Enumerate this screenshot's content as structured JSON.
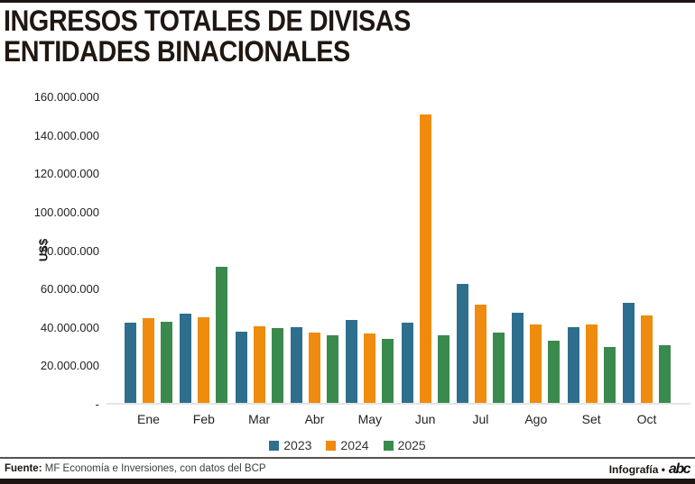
{
  "header": {
    "title_line1": "INGRESOS TOTALES DE DIVISAS",
    "title_line2": "ENTIDADES BINACIONALES"
  },
  "chart_data": {
    "type": "bar",
    "title": "INGRESOS TOTALES DE DIVISAS ENTIDADES BINACIONALES",
    "xlabel": "",
    "ylabel": "US$",
    "categories": [
      "Ene",
      "Feb",
      "Mar",
      "Abr",
      "May",
      "Jun",
      "Jul",
      "Ago",
      "Set",
      "Oct"
    ],
    "series": [
      {
        "name": "2023",
        "color": "#2e6f8e",
        "values": [
          42000000,
          46500000,
          37500000,
          39500000,
          43500000,
          42000000,
          62500000,
          47000000,
          39500000,
          52500000
        ]
      },
      {
        "name": "2024",
        "color": "#ef8b0d",
        "values": [
          44500000,
          45000000,
          40000000,
          37000000,
          36500000,
          151000000,
          51500000,
          41000000,
          41000000,
          46000000
        ]
      },
      {
        "name": "2025",
        "color": "#3a8a4e",
        "values": [
          42500000,
          71500000,
          39000000,
          35500000,
          33500000,
          35500000,
          37000000,
          32500000,
          29500000,
          30000000
        ]
      }
    ],
    "ylim": [
      0,
      160000000
    ],
    "ytick_step": 20000000,
    "ytick_labels": [
      "160.000.000",
      "140.000.000",
      "120.000.000",
      "100.000.000",
      "80.000.000",
      "60.000.000",
      "40.000.000",
      "20.000.000",
      "-"
    ],
    "grid": false,
    "legend_position": "bottom"
  },
  "footer": {
    "source_label": "Fuente:",
    "source_text": "MF Economía e Inversiones, con datos del BCP",
    "credit_text": "Infografía •",
    "logo_text": "abc"
  }
}
